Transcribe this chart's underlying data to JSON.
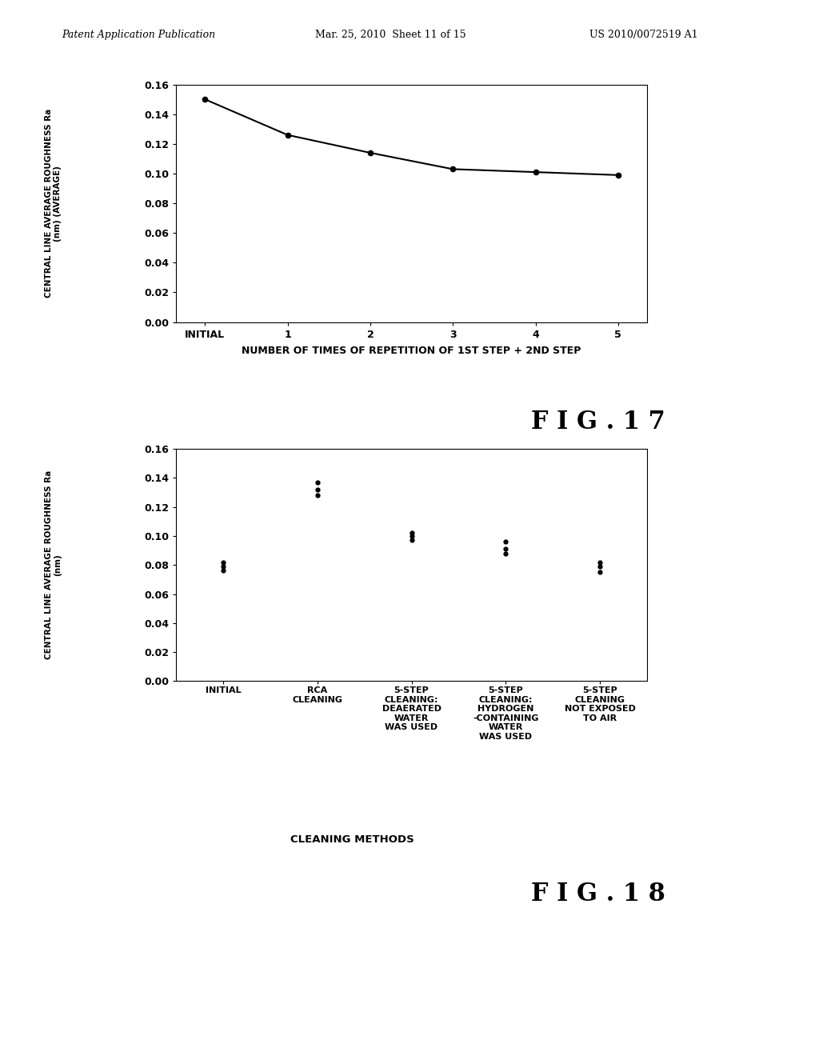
{
  "header_left": "Patent Application Publication",
  "header_mid": "Mar. 25, 2010  Sheet 11 of 15",
  "header_right": "US 2010/0072519 A1",
  "fig17": {
    "fig_label": "F I G . 1 7",
    "ylabel_line1": "CENTRAL LINE AVERAGE ROUGHNESS Ra",
    "ylabel_line2": "(nm) (AVERAGE)",
    "xlabel": "NUMBER OF TIMES OF REPETITION OF 1ST STEP + 2ND STEP",
    "x_labels": [
      "INITIAL",
      "1",
      "2",
      "3",
      "4",
      "5"
    ],
    "x_values": [
      0,
      1,
      2,
      3,
      4,
      5
    ],
    "y_values": [
      0.15,
      0.126,
      0.114,
      0.103,
      0.101,
      0.099
    ],
    "ylim": [
      0.0,
      0.16
    ],
    "yticks": [
      0.0,
      0.02,
      0.04,
      0.06,
      0.08,
      0.1,
      0.12,
      0.14,
      0.16
    ]
  },
  "fig18": {
    "fig_label": "F I G . 1 8",
    "ylabel_line1": "CENTRAL LINE AVERAGE ROUGHNESS Ra",
    "ylabel_line2": "(nm)",
    "xlabel": "CLEANING METHODS",
    "x_labels": [
      "INITIAL",
      "RCA\nCLEANING",
      "5-STEP\nCLEANING:\nDEAERATED\nWATER\nWAS USED",
      "5-STEP\nCLEANING:\nHYDROGEN\n-CONTAINING\nWATER\nWAS USED",
      "5-STEP\nCLEANING\nNOT EXPOSED\nTO AIR"
    ],
    "x_values": [
      0,
      1,
      2,
      3,
      4
    ],
    "scatter_data": [
      [
        0.082,
        0.079,
        0.076
      ],
      [
        0.137,
        0.132,
        0.128
      ],
      [
        0.102,
        0.1,
        0.097
      ],
      [
        0.096,
        0.091,
        0.088
      ],
      [
        0.082,
        0.079,
        0.075
      ]
    ],
    "ylim": [
      0.0,
      0.16
    ],
    "yticks": [
      0.0,
      0.02,
      0.04,
      0.06,
      0.08,
      0.1,
      0.12,
      0.14,
      0.16
    ]
  }
}
